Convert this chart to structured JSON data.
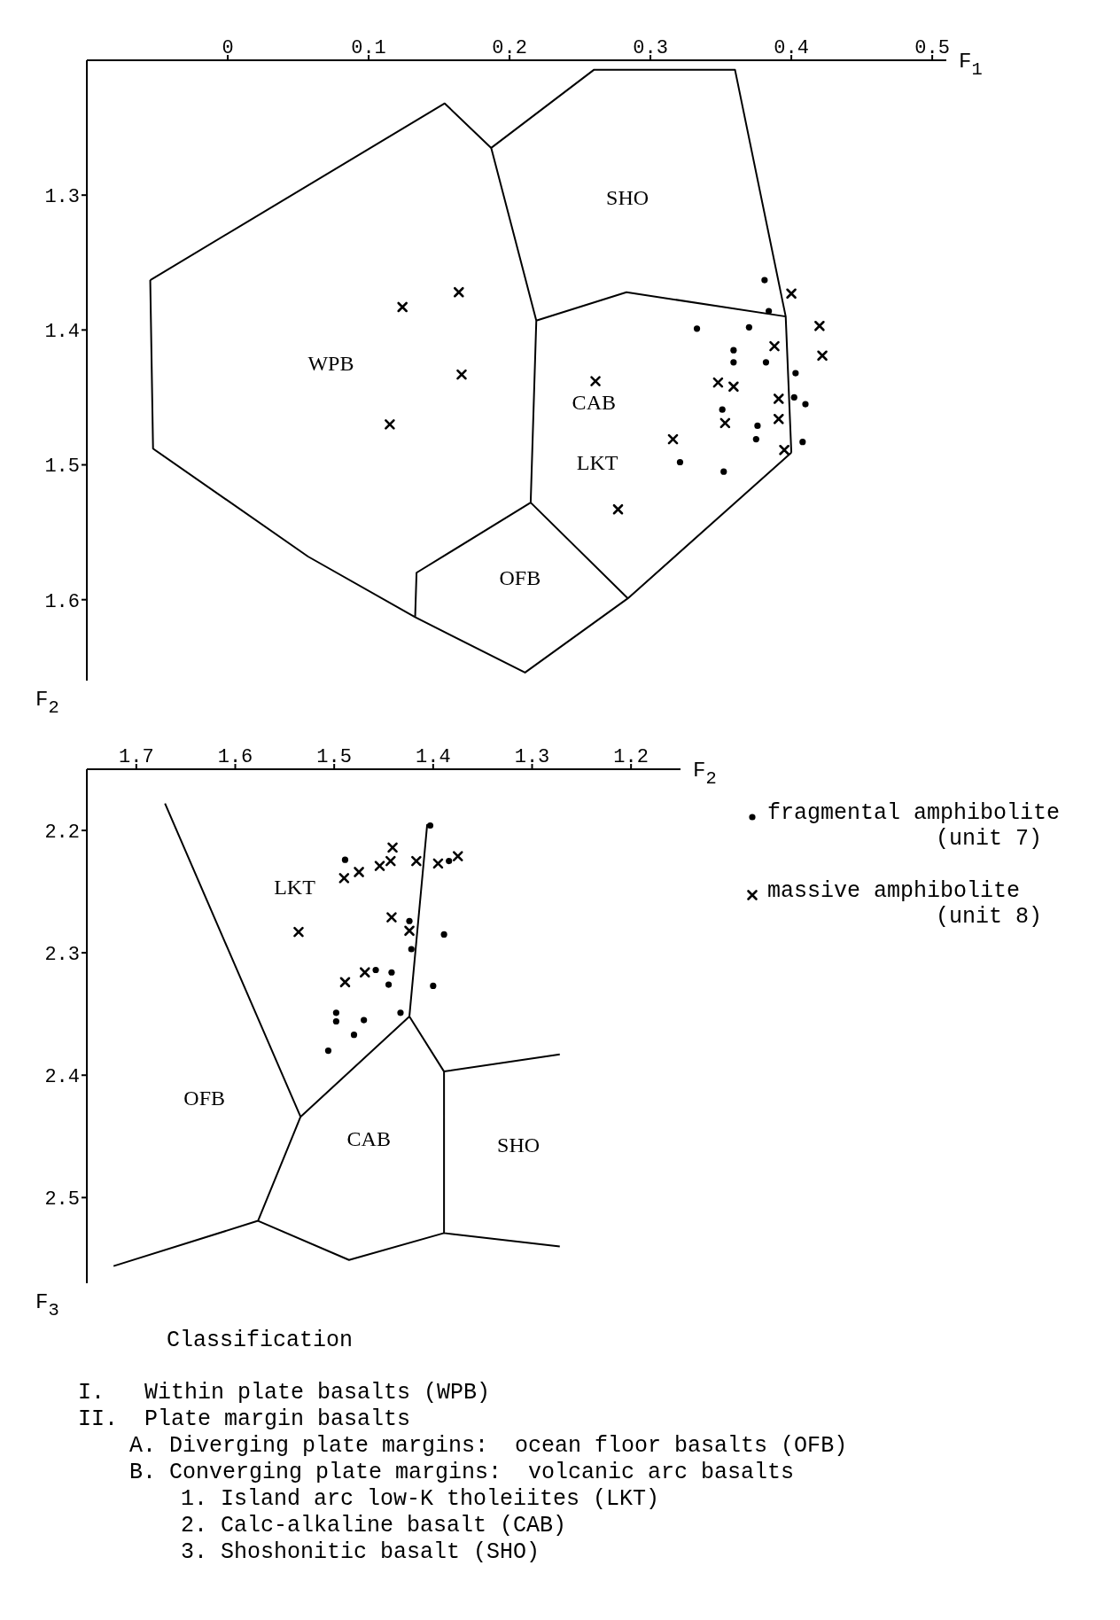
{
  "chart_data": [
    {
      "type": "scatter",
      "xlabel": "F$_{1}$",
      "ylabel": "F$_{2}$",
      "xlim": [
        -0.1,
        0.51
      ],
      "ylim": [
        1.66,
        1.2
      ],
      "xticks": [
        0,
        0.1,
        0.2,
        0.3,
        0.4,
        0.5
      ],
      "yticks": [
        1.3,
        1.4,
        1.5,
        1.6
      ],
      "grid": false,
      "legend": false,
      "annotations": [
        "WPB",
        "SHO",
        "CAB",
        "LKT",
        "OFB"
      ],
      "series": [
        {
          "type": "line",
          "marker": "none",
          "color": "#000000",
          "x": [
            0.187,
            0.154,
            -0.055,
            null,
            -0.055,
            -0.053,
            0.057,
            0.133,
            null,
            0.187,
            0.219,
            null,
            0.219,
            0.215,
            null,
            0.215,
            0.134,
            0.133,
            null,
            0.133,
            0.211,
            0.284,
            null,
            0.284,
            0.215,
            null,
            0.187,
            0.26,
            0.36,
            0.396,
            0.4,
            null,
            0.4,
            0.284,
            null,
            0.219,
            0.283,
            0.396
          ],
          "values": [
            1.265,
            1.232,
            1.363,
            null,
            1.363,
            1.488,
            1.568,
            1.613,
            null,
            1.265,
            1.393,
            null,
            1.393,
            1.528,
            null,
            1.528,
            1.58,
            1.613,
            null,
            1.613,
            1.654,
            1.599,
            null,
            1.599,
            1.528,
            null,
            1.265,
            1.207,
            1.207,
            1.39,
            1.491,
            null,
            1.491,
            1.599,
            null,
            1.393,
            1.372,
            1.39
          ]
        },
        {
          "type": "scatter",
          "marker": "circle",
          "color": "#000000",
          "x": [
            0.381,
            0.384,
            0.333,
            0.37,
            0.359,
            0.359,
            0.382,
            0.403,
            0.402,
            0.41,
            0.351,
            0.376,
            0.375,
            0.408,
            0.321,
            0.352
          ],
          "values": [
            1.363,
            1.386,
            1.399,
            1.398,
            1.415,
            1.424,
            1.424,
            1.432,
            1.45,
            1.455,
            1.459,
            1.471,
            1.481,
            1.483,
            1.498,
            1.505
          ]
        },
        {
          "type": "scatter",
          "marker": "cross",
          "color": "#000000",
          "x": [
            0.4,
            0.42,
            0.422,
            0.388,
            0.261,
            0.348,
            0.359,
            0.391,
            0.391,
            0.353,
            0.316,
            0.395,
            0.277,
            0.164,
            0.124,
            0.166,
            0.115
          ],
          "values": [
            1.373,
            1.397,
            1.419,
            1.412,
            1.438,
            1.439,
            1.442,
            1.451,
            1.466,
            1.469,
            1.481,
            1.489,
            1.533,
            1.372,
            1.383,
            1.433,
            1.47
          ]
        }
      ]
    },
    {
      "type": "scatter",
      "xlabel": "F$_{2}$",
      "ylabel": "F$_{3}$",
      "xlim": [
        1.75,
        1.15
      ],
      "ylim": [
        2.57,
        2.15
      ],
      "xticks": [
        1.7,
        1.6,
        1.5,
        1.4,
        1.3,
        1.2
      ],
      "yticks": [
        2.2,
        2.3,
        2.4,
        2.5
      ],
      "grid": false,
      "legend": "right",
      "annotations": [
        "LKT",
        "OFB",
        "CAB",
        "SHO"
      ],
      "series": [
        {
          "type": "line",
          "marker": "none",
          "color": "#000000",
          "x": [
            1.671,
            1.534,
            1.424,
            1.406,
            null,
            1.723,
            1.577,
            1.534,
            null,
            1.577,
            1.485,
            1.389,
            1.272,
            null,
            1.424,
            1.389,
            1.389,
            null,
            1.389,
            1.272
          ],
          "values": [
            2.178,
            2.434,
            2.352,
            2.195,
            null,
            2.556,
            2.519,
            2.434,
            null,
            2.519,
            2.551,
            2.529,
            2.54,
            null,
            2.352,
            2.397,
            2.529,
            null,
            2.397,
            2.383
          ]
        },
        {
          "type": "scatter",
          "name": "fragmental amphibolite (unit 7)",
          "marker": "circle",
          "color": "#000000",
          "x": [
            1.403,
            1.489,
            1.384,
            1.424,
            1.389,
            1.422,
            1.458,
            1.442,
            1.445,
            1.4,
            1.498,
            1.433,
            1.498,
            1.47,
            1.48,
            1.506
          ],
          "values": [
            2.196,
            2.224,
            2.225,
            2.274,
            2.285,
            2.297,
            2.314,
            2.316,
            2.326,
            2.327,
            2.349,
            2.349,
            2.356,
            2.355,
            2.367,
            2.38
          ]
        },
        {
          "type": "scatter",
          "name": "massive amphibolite (unit 8)",
          "marker": "cross",
          "color": "#000000",
          "x": [
            1.441,
            1.443,
            1.417,
            1.395,
            1.375,
            1.454,
            1.475,
            1.49,
            1.536,
            1.442,
            1.424,
            1.469,
            1.489
          ],
          "values": [
            2.214,
            2.225,
            2.225,
            2.227,
            2.221,
            2.229,
            2.234,
            2.239,
            2.283,
            2.271,
            2.282,
            2.316,
            2.324
          ]
        }
      ]
    },
    {
      "type": "other",
      "title": "Classification",
      "annotations": [
        "I.   Within plate basalts (WPB)",
        "II.  Plate margin basalts",
        "A. Diverging plate margins:  ocean floor basalts (OFB)",
        "B. Converging plate margins:  volcanic arc basalts",
        "1. Island arc low-K tholeiites (LKT)",
        "2. Calc-alkaline basalt (CAB)",
        "3. Shoshonitic basalt (SHO)"
      ]
    }
  ]
}
